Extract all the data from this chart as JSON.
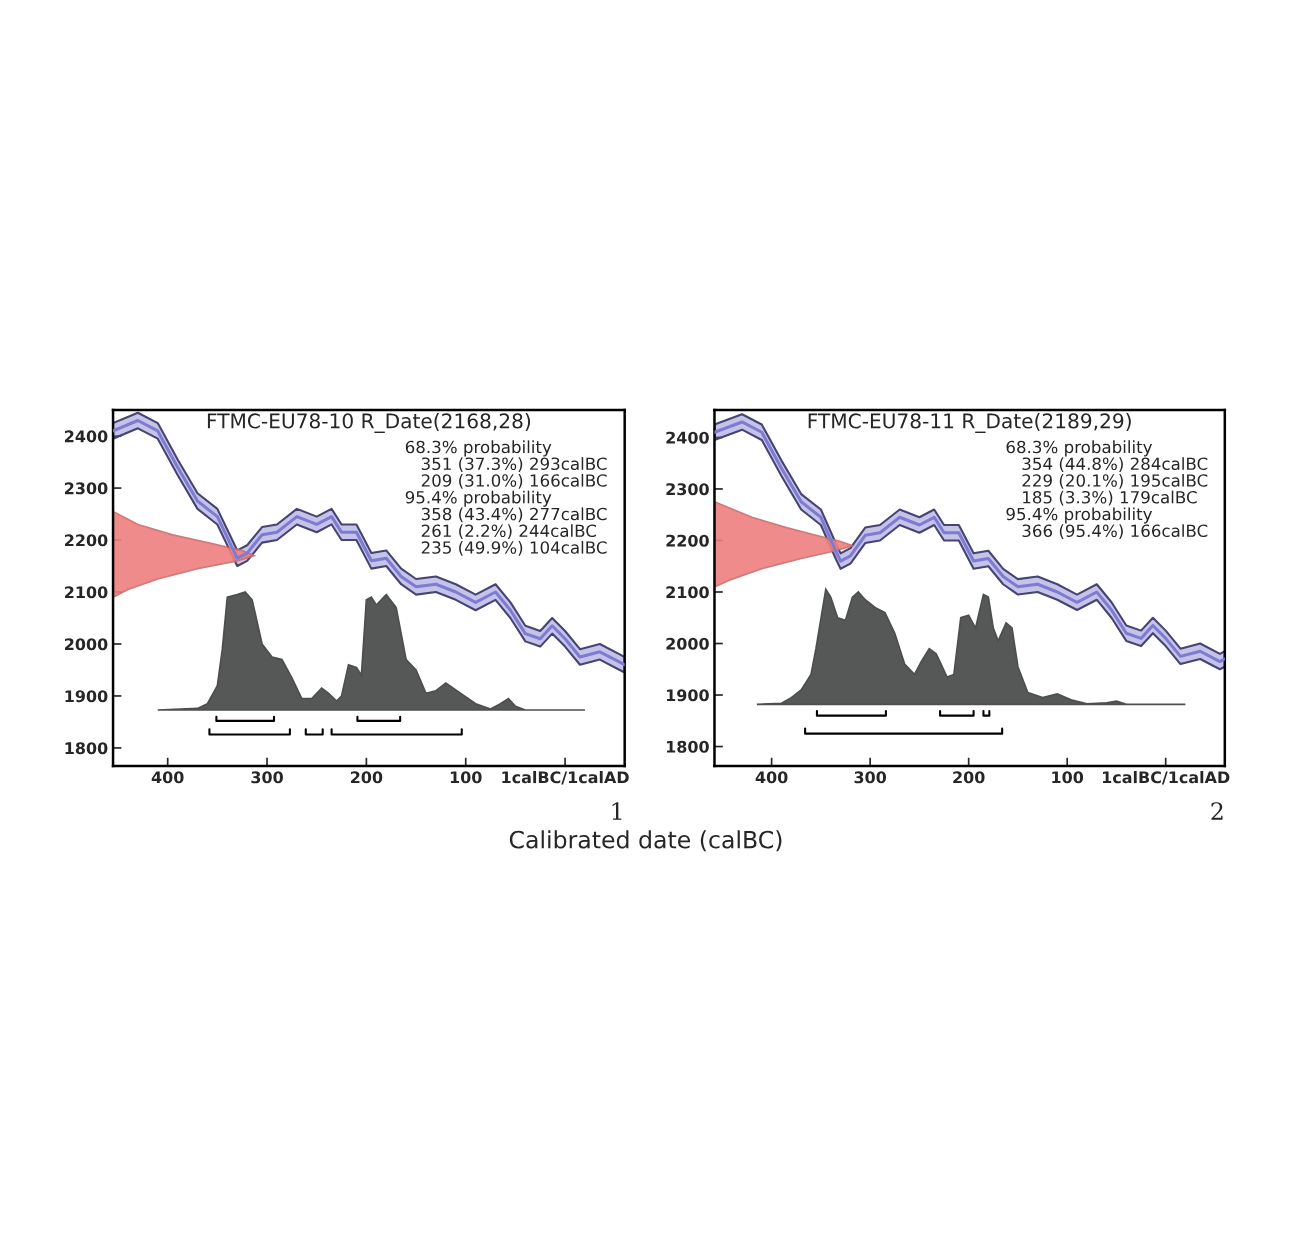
{
  "chart_data": [
    {
      "type": "line",
      "title": "FTMC-EU78-10 R_Date(2168,28)",
      "xlabel": "Calibrated date (calBC)",
      "xlim": [
        455,
        -60
      ],
      "ylim": [
        1765,
        2450
      ],
      "xticks": [
        400,
        300,
        200,
        100,
        {
          "value": 0,
          "label": "1calBC/1calAD"
        }
      ],
      "yticks": [
        1800,
        1900,
        2000,
        2100,
        2200,
        2300,
        2400
      ],
      "grid": false,
      "legend": false,
      "annotations": [
        "68.3% probability\n   351 (37.3%) 293calBC\n   209 (31.0%) 166calBC\n95.4% probability\n   358 (43.4%) 277calBC\n   261 (2.2%) 244calBC\n   235 (49.9%) 104calBC",
        "1"
      ],
      "series": [
        {
          "color": "#7e7bd0",
          "x": [
            455,
            430,
            410,
            390,
            370,
            350,
            335,
            330,
            320,
            305,
            290,
            270,
            250,
            235,
            225,
            210,
            195,
            180,
            165,
            150,
            130,
            110,
            90,
            70,
            55,
            40,
            25,
            13,
            0,
            -15,
            -35,
            -55,
            -60
          ],
          "values": [
            2410,
            2430,
            2410,
            2340,
            2275,
            2245,
            2185,
            2165,
            2175,
            2210,
            2215,
            2245,
            2230,
            2245,
            2215,
            2215,
            2160,
            2165,
            2130,
            2110,
            2115,
            2100,
            2080,
            2100,
            2065,
            2020,
            2010,
            2035,
            2010,
            1975,
            1985,
            1965,
            1960
          ],
          "lower": [
            2395,
            2415,
            2395,
            2325,
            2260,
            2230,
            2170,
            2150,
            2160,
            2195,
            2200,
            2230,
            2215,
            2230,
            2200,
            2200,
            2145,
            2150,
            2115,
            2095,
            2100,
            2085,
            2065,
            2085,
            2050,
            2005,
            1995,
            2020,
            1995,
            1960,
            1970,
            1950,
            1945
          ],
          "upper": [
            2425,
            2445,
            2425,
            2355,
            2290,
            2260,
            2200,
            2180,
            2190,
            2225,
            2230,
            2260,
            2245,
            2260,
            2230,
            2230,
            2175,
            2180,
            2145,
            2125,
            2130,
            2115,
            2095,
            2115,
            2080,
            2035,
            2025,
            2050,
            2025,
            1990,
            2000,
            1980,
            1975
          ]
        },
        {
          "type": "area",
          "color": "#ef7f7f",
          "x": [
            455,
            430,
            395,
            360,
            325,
            313,
            330,
            370,
            410,
            440,
            455
          ],
          "values": [
            2255,
            2230,
            2210,
            2195,
            2180,
            2170,
            2160,
            2145,
            2125,
            2105,
            2090
          ]
        },
        {
          "type": "area",
          "color": "#434645",
          "x": [
            410,
            370,
            360,
            350,
            345,
            340,
            330,
            322,
            315,
            305,
            295,
            285,
            275,
            265,
            255,
            245,
            238,
            230,
            225,
            218,
            210,
            205,
            200,
            195,
            190,
            180,
            170,
            160,
            150,
            140,
            130,
            120,
            105,
            90,
            75,
            65,
            57,
            50,
            40,
            -20
          ],
          "values": [
            1873,
            1876,
            1885,
            1920,
            1990,
            2090,
            2095,
            2100,
            2085,
            2000,
            1975,
            1970,
            1935,
            1895,
            1895,
            1915,
            1905,
            1890,
            1900,
            1960,
            1955,
            1940,
            2085,
            2090,
            2075,
            2095,
            2070,
            1970,
            1950,
            1905,
            1910,
            1925,
            1905,
            1885,
            1875,
            1885,
            1895,
            1880,
            1873,
            1873
          ]
        },
        {
          "type": "line",
          "color": "#000000",
          "x": [
            351,
            351,
            293,
            293
          ],
          "values": [
            1860,
            1852,
            1852,
            1860
          ]
        },
        {
          "type": "line",
          "color": "#000000",
          "x": [
            209,
            209,
            166,
            166
          ],
          "values": [
            1860,
            1852,
            1852,
            1860
          ]
        },
        {
          "type": "line",
          "color": "#000000",
          "x": [
            358,
            358,
            277,
            277
          ],
          "values": [
            1836,
            1826,
            1826,
            1836
          ]
        },
        {
          "type": "line",
          "color": "#000000",
          "x": [
            261,
            261,
            244,
            244
          ],
          "values": [
            1836,
            1826,
            1826,
            1836
          ]
        },
        {
          "type": "line",
          "color": "#000000",
          "x": [
            235,
            235,
            104,
            104
          ],
          "values": [
            1836,
            1826,
            1826,
            1836
          ]
        }
      ]
    },
    {
      "type": "line",
      "title": "FTMC-EU78-11 R_Date(2189,29)",
      "xlim": [
        458,
        -60
      ],
      "ylim": [
        1762,
        2453
      ],
      "xticks": [
        400,
        300,
        200,
        100,
        {
          "value": 0,
          "label": "1calBC/1calAD"
        }
      ],
      "yticks": [
        1800,
        1900,
        2000,
        2100,
        2200,
        2300,
        2400
      ],
      "grid": false,
      "legend": false,
      "annotations": [
        "68.3% probability\n   354 (44.8%) 284calBC\n   229 (20.1%) 195calBC\n   185 (3.3%) 179calBC\n95.4% probability\n   366 (95.4%) 166calBC",
        "2"
      ],
      "series": [
        {
          "color": "#7e7bd0",
          "x": [
            458,
            430,
            410,
            390,
            370,
            350,
            335,
            330,
            320,
            305,
            290,
            270,
            250,
            235,
            225,
            210,
            195,
            180,
            165,
            150,
            130,
            110,
            90,
            70,
            55,
            40,
            25,
            13,
            0,
            -15,
            -35,
            -55,
            -60
          ],
          "values": [
            2410,
            2430,
            2410,
            2340,
            2275,
            2245,
            2180,
            2160,
            2170,
            2210,
            2215,
            2245,
            2230,
            2245,
            2215,
            2215,
            2160,
            2165,
            2130,
            2110,
            2115,
            2100,
            2080,
            2100,
            2065,
            2020,
            2010,
            2035,
            2010,
            1975,
            1985,
            1965,
            1970
          ],
          "lower": [
            2395,
            2415,
            2395,
            2325,
            2260,
            2230,
            2165,
            2145,
            2155,
            2195,
            2200,
            2230,
            2215,
            2230,
            2200,
            2200,
            2145,
            2150,
            2115,
            2095,
            2100,
            2085,
            2065,
            2085,
            2050,
            2005,
            1995,
            2020,
            1995,
            1960,
            1970,
            1950,
            1955
          ],
          "upper": [
            2425,
            2445,
            2425,
            2355,
            2290,
            2260,
            2195,
            2175,
            2185,
            2225,
            2230,
            2260,
            2245,
            2260,
            2230,
            2230,
            2175,
            2180,
            2145,
            2125,
            2130,
            2115,
            2095,
            2115,
            2080,
            2035,
            2025,
            2050,
            2025,
            1990,
            2000,
            1980,
            1985
          ]
        },
        {
          "type": "area",
          "color": "#ef7f7f",
          "x": [
            458,
            420,
            385,
            355,
            330,
            318,
            335,
            370,
            410,
            440,
            458
          ],
          "values": [
            2275,
            2245,
            2225,
            2210,
            2198,
            2190,
            2180,
            2165,
            2145,
            2125,
            2110
          ]
        },
        {
          "type": "area",
          "color": "#434645",
          "x": [
            415,
            390,
            380,
            370,
            360,
            355,
            345,
            340,
            333,
            325,
            318,
            312,
            305,
            295,
            285,
            275,
            265,
            255,
            248,
            240,
            233,
            228,
            222,
            215,
            208,
            200,
            193,
            185,
            180,
            175,
            170,
            162,
            156,
            150,
            140,
            125,
            110,
            95,
            80,
            60,
            50,
            40,
            -20
          ],
          "values": [
            1882,
            1884,
            1895,
            1910,
            1940,
            1990,
            2105,
            2090,
            2050,
            2045,
            2090,
            2100,
            2085,
            2070,
            2060,
            2020,
            1960,
            1940,
            1965,
            1990,
            1980,
            1960,
            1935,
            1940,
            2050,
            2055,
            2030,
            2095,
            2090,
            2030,
            2005,
            2040,
            2030,
            1955,
            1905,
            1895,
            1902,
            1890,
            1883,
            1885,
            1888,
            1882,
            1882
          ]
        },
        {
          "type": "line",
          "color": "#000000",
          "x": [
            354,
            354,
            284,
            284
          ],
          "values": [
            1869,
            1860,
            1860,
            1869
          ]
        },
        {
          "type": "line",
          "color": "#000000",
          "x": [
            229,
            229,
            195,
            195
          ],
          "values": [
            1869,
            1860,
            1860,
            1869
          ]
        },
        {
          "type": "line",
          "color": "#000000",
          "x": [
            185,
            185,
            179,
            179
          ],
          "values": [
            1869,
            1860,
            1860,
            1869
          ]
        },
        {
          "type": "line",
          "color": "#000000",
          "x": [
            366,
            366,
            166,
            166
          ],
          "values": [
            1835,
            1825,
            1825,
            1835
          ]
        }
      ]
    }
  ]
}
